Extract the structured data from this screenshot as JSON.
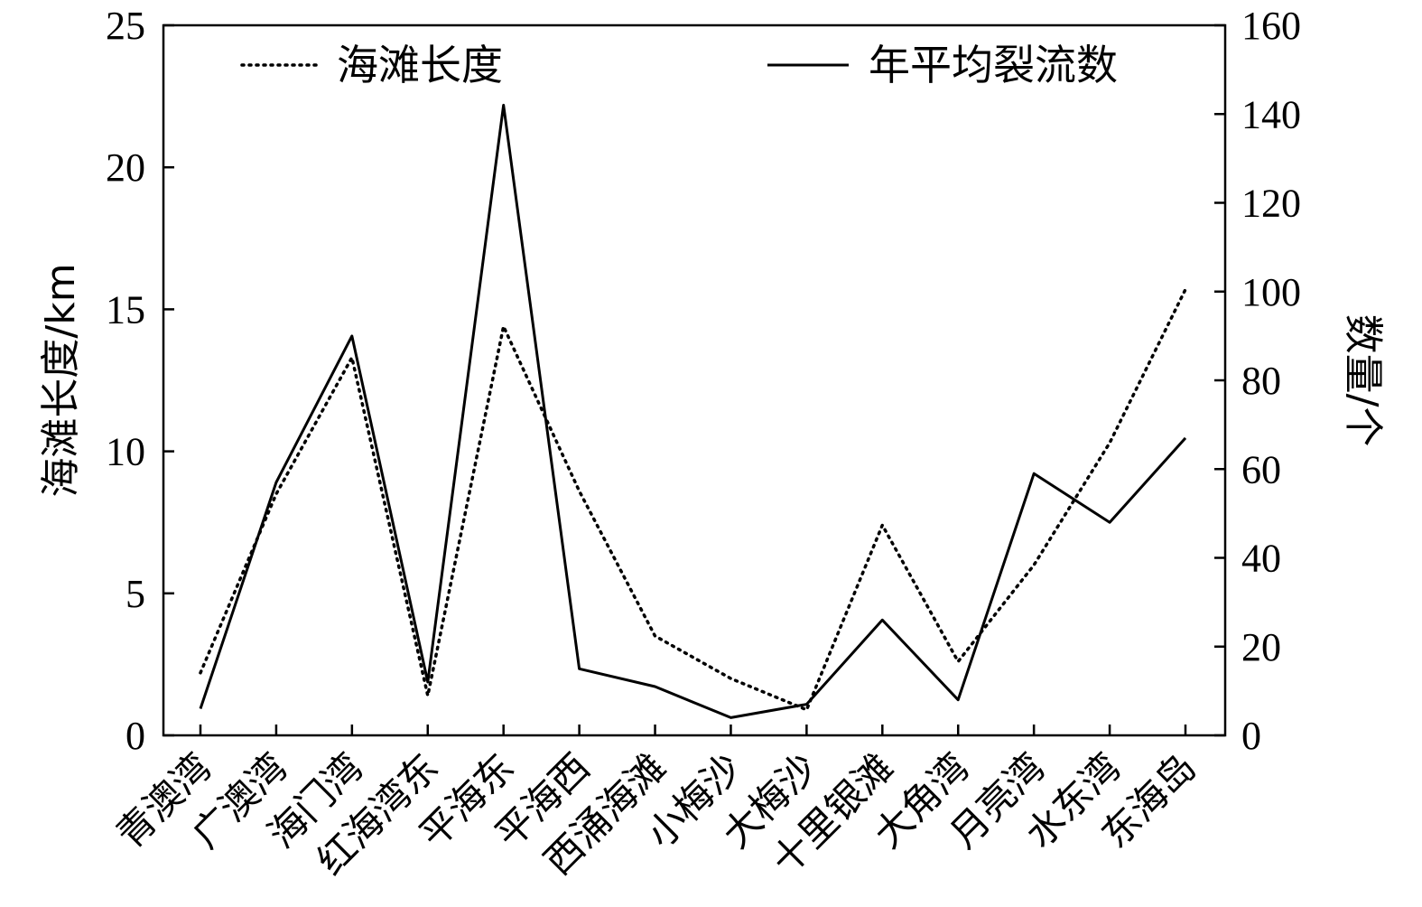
{
  "chart_data": {
    "type": "line",
    "categories": [
      "青澳湾",
      "广澳湾",
      "海门湾",
      "红海湾东",
      "平海东",
      "平海西",
      "西涌海滩",
      "小梅沙",
      "大梅沙",
      "十里银滩",
      "大角湾",
      "月亮湾",
      "水东湾",
      "东海岛"
    ],
    "series": [
      {
        "name": "海滩长度",
        "axis": "left",
        "style": "dotted",
        "color": "#000000",
        "values": [
          2.2,
          8.5,
          13.3,
          1.4,
          14.4,
          8.6,
          3.5,
          2.0,
          0.9,
          7.4,
          2.6,
          6.0,
          10.3,
          15.7
        ]
      },
      {
        "name": "年平均裂流数",
        "axis": "right",
        "style": "solid",
        "color": "#000000",
        "values": [
          6,
          57,
          90,
          12,
          142,
          15,
          11,
          4,
          7,
          26,
          8,
          59,
          48,
          67
        ]
      }
    ],
    "y_left": {
      "label": "海滩长度/km",
      "range": [
        0,
        25
      ],
      "ticks": [
        "0",
        "5",
        "10",
        "15",
        "20",
        "25"
      ]
    },
    "y_right": {
      "label": "数量/个",
      "range": [
        0,
        160
      ],
      "ticks": [
        "0",
        "20",
        "40",
        "60",
        "80",
        "100",
        "120",
        "140",
        "160"
      ]
    },
    "grid": false,
    "legend": "top"
  }
}
